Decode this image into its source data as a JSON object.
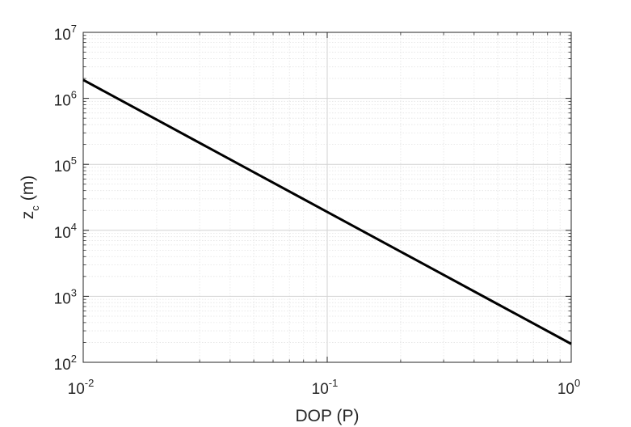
{
  "chart_data": {
    "type": "line",
    "title": "",
    "xlabel": "DOP (P)",
    "ylabel_main": "z",
    "ylabel_sub": "c",
    "ylabel_unit": "(m)",
    "xscale": "log",
    "yscale": "log",
    "xlim": [
      0.01,
      1
    ],
    "ylim": [
      100,
      10000000
    ],
    "grid": true,
    "minor_grid": true,
    "x_ticks": [
      {
        "base": "10",
        "exp": "-2",
        "value": 0.01
      },
      {
        "base": "10",
        "exp": "-1",
        "value": 0.1
      },
      {
        "base": "10",
        "exp": "0",
        "value": 1
      }
    ],
    "y_ticks": [
      {
        "base": "10",
        "exp": "2",
        "value": 100
      },
      {
        "base": "10",
        "exp": "3",
        "value": 1000
      },
      {
        "base": "10",
        "exp": "4",
        "value": 10000
      },
      {
        "base": "10",
        "exp": "5",
        "value": 100000
      },
      {
        "base": "10",
        "exp": "6",
        "value": 1000000
      },
      {
        "base": "10",
        "exp": "7",
        "value": 10000000
      }
    ],
    "series": [
      {
        "x": [
          0.01,
          0.02,
          0.05,
          0.1,
          0.2,
          0.5,
          1
        ],
        "y": [
          1900000,
          475000,
          76000,
          19000,
          4750,
          760,
          190
        ]
      }
    ],
    "line_color": "#000000"
  }
}
